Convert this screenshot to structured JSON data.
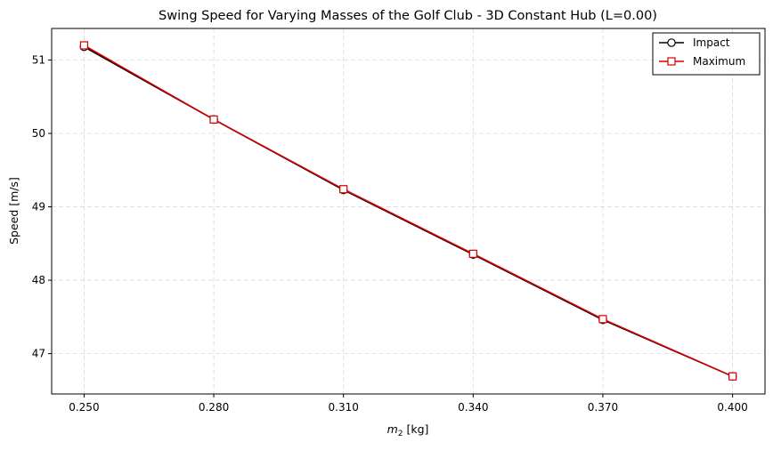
{
  "chart_data": {
    "type": "line",
    "title": "Swing Speed for Varying Masses of the Golf Club - 3D Constant Hub (L=0.00)",
    "xlabel_base": "m",
    "xlabel_sub": "2",
    "xlabel_unit": " [kg]",
    "ylabel": "Speed [m/s]",
    "x": [
      0.25,
      0.28,
      0.31,
      0.34,
      0.37,
      0.4
    ],
    "x_tick_labels": [
      "0.250",
      "0.280",
      "0.310",
      "0.340",
      "0.370",
      "0.400"
    ],
    "y_ticks": [
      47,
      48,
      49,
      50,
      51
    ],
    "y_tick_labels": [
      "47",
      "48",
      "49",
      "50",
      "51"
    ],
    "xlim": [
      0.2425,
      0.4075
    ],
    "ylim": [
      46.45,
      51.43
    ],
    "grid": true,
    "legend_position": "top-right",
    "series": [
      {
        "name": "Impact",
        "color": "#000000",
        "marker": "circle",
        "values": [
          51.18,
          50.19,
          49.23,
          48.35,
          47.46,
          46.69
        ]
      },
      {
        "name": "Maximum",
        "color": "#d40000",
        "marker": "square",
        "values": [
          51.2,
          50.19,
          49.24,
          48.36,
          47.47,
          46.69
        ]
      }
    ]
  }
}
